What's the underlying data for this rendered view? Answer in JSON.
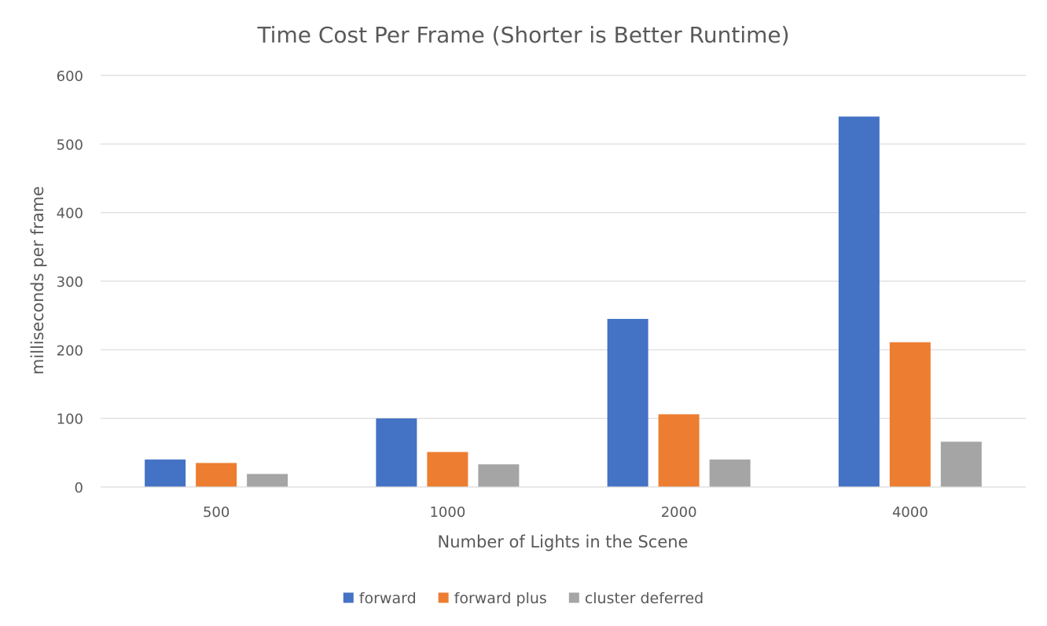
{
  "chart_data": {
    "type": "bar",
    "title": "Time Cost Per Frame (Shorter is Better Runtime)",
    "xlabel": "Number of Lights in the Scene",
    "ylabel": "milliseconds per frame",
    "categories": [
      "500",
      "1000",
      "2000",
      "4000"
    ],
    "series": [
      {
        "name": "forward",
        "color": "#4472C4",
        "values": [
          40,
          100,
          245,
          540
        ]
      },
      {
        "name": "forward plus",
        "color": "#ED7D31",
        "values": [
          35,
          51,
          106,
          211
        ]
      },
      {
        "name": "cluster deferred",
        "color": "#A5A5A5",
        "values": [
          19,
          33,
          40,
          66
        ]
      }
    ],
    "ylim": [
      0,
      600
    ],
    "yticks": [
      0,
      100,
      200,
      300,
      400,
      500,
      600
    ],
    "grid": true,
    "legend": "bottom-center"
  }
}
